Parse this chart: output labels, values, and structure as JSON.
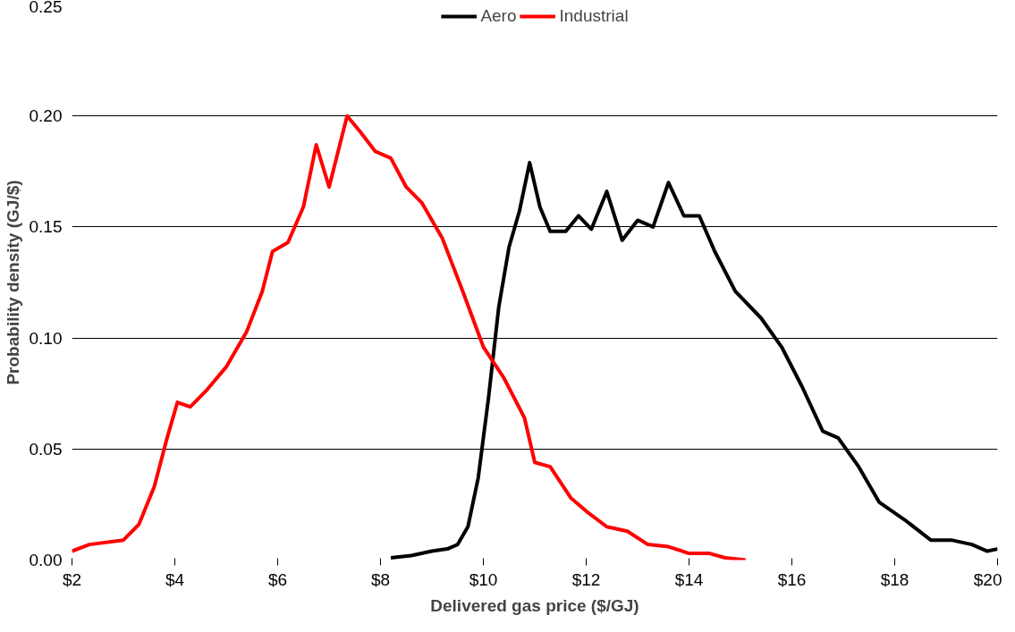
{
  "chart_data": {
    "type": "line",
    "xlabel": "Delivered gas price ($/GJ)",
    "ylabel": "Probability density (GJ/$)",
    "xlim": [
      2,
      20
    ],
    "ylim": [
      0,
      0.25
    ],
    "xticks": [
      {
        "value": 2,
        "label": "$2"
      },
      {
        "value": 4,
        "label": "$4"
      },
      {
        "value": 6,
        "label": "$6"
      },
      {
        "value": 8,
        "label": "$8"
      },
      {
        "value": 10,
        "label": "$10"
      },
      {
        "value": 12,
        "label": "$12"
      },
      {
        "value": 14,
        "label": "$14"
      },
      {
        "value": 16,
        "label": "$16"
      },
      {
        "value": 18,
        "label": "$18"
      },
      {
        "value": 20,
        "label": "$20"
      }
    ],
    "yticks": [
      {
        "value": 0,
        "label": "0.00"
      },
      {
        "value": 0.05,
        "label": "0.05"
      },
      {
        "value": 0.1,
        "label": "0.10"
      },
      {
        "value": 0.15,
        "label": "0.15"
      },
      {
        "value": 0.2,
        "label": "0.20"
      },
      {
        "value": 0.25,
        "label": "0.25"
      }
    ],
    "grid": "y",
    "legend": "top",
    "marker": "none",
    "line_style": "solid",
    "series": [
      {
        "name": "Aero",
        "color": "#000000",
        "x": [
          8.2,
          8.6,
          9.0,
          9.3,
          9.5,
          9.7,
          9.9,
          10.1,
          10.3,
          10.5,
          10.7,
          10.9,
          11.1,
          11.3,
          11.6,
          11.85,
          12.1,
          12.4,
          12.7,
          13.0,
          13.3,
          13.6,
          13.9,
          14.2,
          14.5,
          14.9,
          15.4,
          15.8,
          16.2,
          16.6,
          16.9,
          17.3,
          17.7,
          18.2,
          18.7,
          19.1,
          19.5,
          19.8,
          20.0
        ],
        "values": [
          0.001,
          0.002,
          0.004,
          0.005,
          0.007,
          0.015,
          0.037,
          0.073,
          0.114,
          0.141,
          0.157,
          0.179,
          0.159,
          0.148,
          0.148,
          0.155,
          0.149,
          0.166,
          0.144,
          0.153,
          0.15,
          0.17,
          0.155,
          0.155,
          0.139,
          0.121,
          0.109,
          0.096,
          0.078,
          0.058,
          0.055,
          0.042,
          0.026,
          0.018,
          0.009,
          0.009,
          0.007,
          0.004,
          0.005
        ]
      },
      {
        "name": "Industrial",
        "color": "#ff0000",
        "x": [
          2.0,
          2.34,
          3.0,
          3.3,
          3.6,
          3.85,
          4.05,
          4.3,
          4.6,
          5.0,
          5.4,
          5.7,
          5.9,
          6.2,
          6.5,
          6.75,
          7.0,
          7.35,
          7.6,
          7.9,
          8.2,
          8.5,
          8.8,
          9.2,
          9.6,
          10.0,
          10.4,
          10.8,
          11.0,
          11.3,
          11.7,
          12.0,
          12.4,
          12.8,
          13.2,
          13.6,
          14.0,
          14.4,
          14.7,
          15.1
        ],
        "values": [
          0.004,
          0.007,
          0.009,
          0.016,
          0.033,
          0.055,
          0.071,
          0.069,
          0.076,
          0.087,
          0.103,
          0.121,
          0.139,
          0.143,
          0.159,
          0.187,
          0.168,
          0.2,
          0.193,
          0.184,
          0.181,
          0.168,
          0.161,
          0.145,
          0.121,
          0.096,
          0.082,
          0.064,
          0.044,
          0.042,
          0.028,
          0.022,
          0.015,
          0.013,
          0.007,
          0.006,
          0.003,
          0.003,
          0.001,
          0.0
        ]
      }
    ]
  }
}
